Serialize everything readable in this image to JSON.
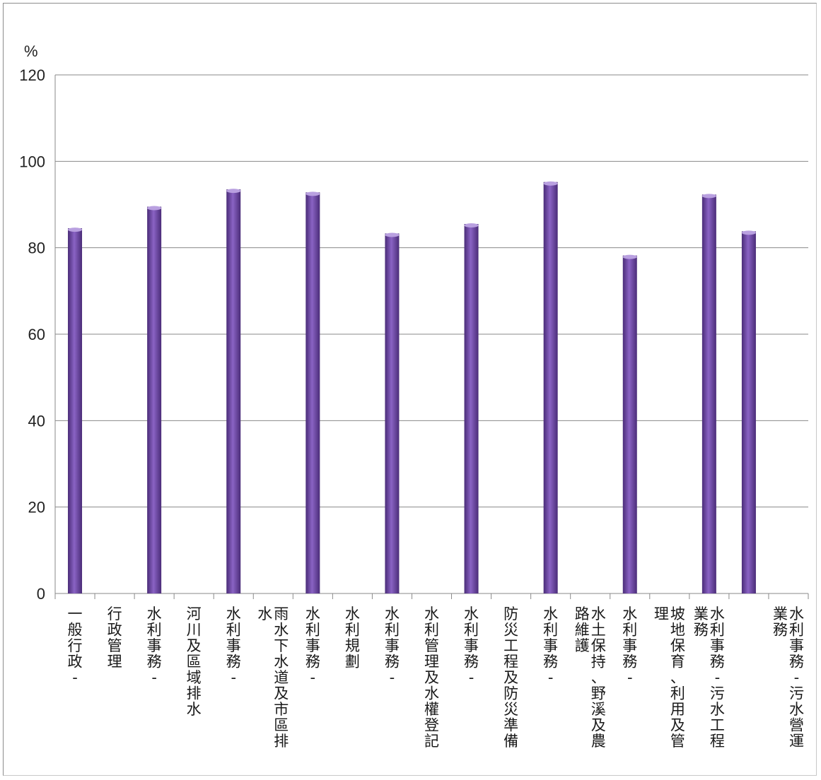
{
  "chart_data": {
    "type": "bar",
    "ylabel": "%",
    "ylim": [
      0,
      120
    ],
    "yticks": [
      "0",
      "20",
      "40",
      "60",
      "80",
      "100",
      "120"
    ],
    "grid": true,
    "bar_color": "#6f46a8",
    "categories": [
      "一般行政-",
      "行政管理",
      "水利事務-",
      "河川及區域排水",
      "水利事務-",
      "雨水下水道及市區排水",
      "水利事務-",
      "水利規劃",
      "水利事務-",
      "水利管理及水權登記",
      "水利事務-",
      "防災工程及防災準備",
      "水利事務-",
      "水土保持、野溪及農路維護",
      "水利事務-",
      "坡地保育、利用及管理",
      "水利事務-污水工程業務",
      "",
      "水利事務-污水營運業務"
    ],
    "values": [
      84.5,
      null,
      89.5,
      null,
      93.5,
      null,
      92.8,
      null,
      83.3,
      null,
      85.5,
      null,
      95.2,
      null,
      78.2,
      null,
      92.3,
      83.8,
      null
    ]
  }
}
